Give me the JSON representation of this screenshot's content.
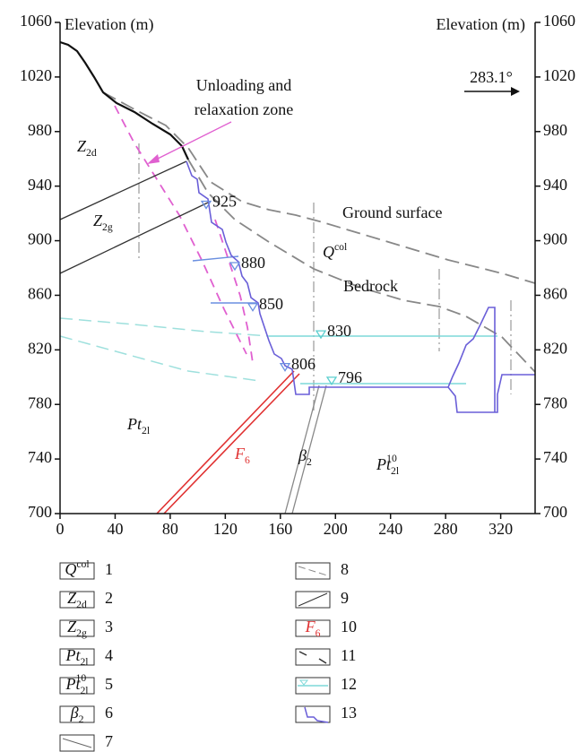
{
  "chart_data": {
    "type": "section",
    "xlim": [
      0,
      345
    ],
    "xticks": [
      0,
      40,
      80,
      120,
      160,
      200,
      240,
      280,
      320
    ],
    "ylim": [
      700,
      1060
    ],
    "yticks": [
      700,
      740,
      780,
      820,
      860,
      900,
      940,
      980,
      1020,
      1060
    ],
    "y_label_left": "Elevation (m)",
    "y_label_right": "Elevation (m)",
    "direction": "283.1°",
    "zone_label": [
      "Unloading and",
      "relaxation zone"
    ],
    "ground_surface": "Ground surface",
    "bedrock": "Bedrock",
    "water_levels": [
      925,
      880,
      850,
      830,
      806,
      796
    ],
    "units": [
      {
        "base": "Q",
        "sup": "col"
      },
      {
        "base": "Z",
        "sub": "2d"
      },
      {
        "base": "Z",
        "sub": "2g"
      },
      {
        "base": "Pt",
        "sub": "2l"
      },
      {
        "base": "Pt",
        "sub": "2l",
        "sup": "10"
      },
      {
        "base": "β",
        "sub": "2"
      },
      {
        "base": "F",
        "sub": "6"
      }
    ],
    "legend_numbers": [
      1,
      2,
      3,
      4,
      5,
      6,
      7,
      8,
      9,
      10,
      11,
      12,
      13
    ]
  }
}
